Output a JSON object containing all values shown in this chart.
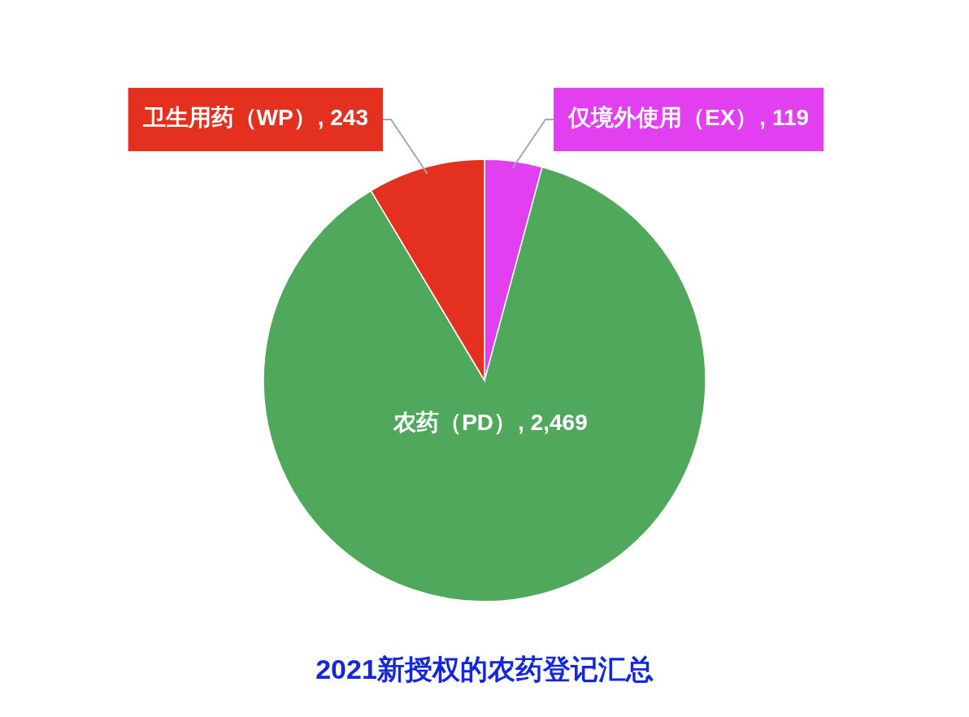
{
  "chart_data": {
    "type": "pie",
    "title": "2021新授权的农药登记汇总",
    "categories": [
      "仅境外使用（EX）",
      "农药（PD）",
      "卫生用药（WP）"
    ],
    "values": [
      119,
      2469,
      243
    ],
    "value_labels": [
      ", 119",
      ", 2,469",
      ", 243"
    ],
    "colors": [
      "#e23ff0",
      "#4fa85b",
      "#e3301f"
    ]
  }
}
